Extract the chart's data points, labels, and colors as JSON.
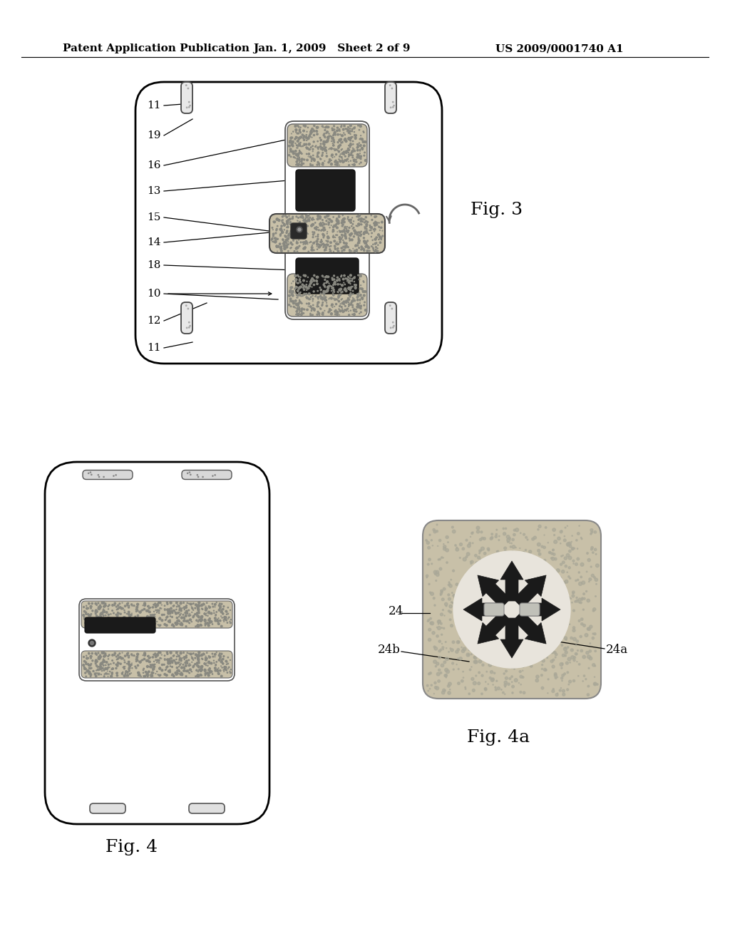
{
  "bg_color": "#ffffff",
  "header_left": "Patent Application Publication",
  "header_mid": "Jan. 1, 2009   Sheet 2 of 9",
  "header_right": "US 2009/0001740 A1",
  "fig3_label": "Fig. 3",
  "fig4_label": "Fig. 4",
  "fig4a_label": "Fig. 4a",
  "speckle_color": "#c8c0a8",
  "dark_color": "#1a1a1a",
  "light_tan": "#d8d0b8"
}
